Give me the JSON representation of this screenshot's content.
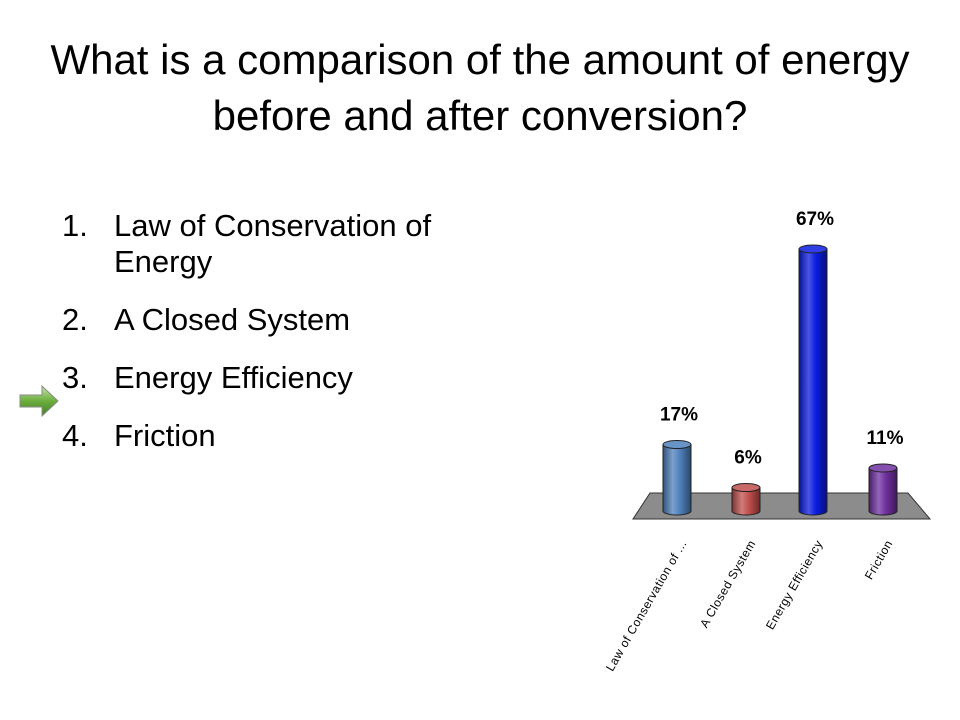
{
  "slide": {
    "title": "What is a comparison of the amount of energy before and after conversion?",
    "answers": [
      {
        "number": "1.",
        "text": "Law of Conservation of Energy"
      },
      {
        "number": "2.",
        "text": "A Closed System"
      },
      {
        "number": "3.",
        "text": "Energy Efficiency"
      },
      {
        "number": "4.",
        "text": "Friction"
      }
    ],
    "pointer_icon": "green-arrow-icon",
    "pointer_answer": 3
  },
  "chart_data": {
    "type": "bar",
    "categories": [
      "Law of Conservation of ...",
      "A Closed System",
      "Energy Efficiency",
      "Friction"
    ],
    "values": [
      17,
      6,
      67,
      11
    ],
    "data_labels": [
      "17%",
      "6%",
      "67%",
      "11%"
    ],
    "colors": [
      "#4f81bd",
      "#c0504d",
      "#0b1de0",
      "#7030a0"
    ],
    "floor_color": "#8c8c8c",
    "ylim": [
      0,
      67
    ],
    "grid": false,
    "legend": "none",
    "title": "",
    "xlabel": "",
    "ylabel": ""
  }
}
